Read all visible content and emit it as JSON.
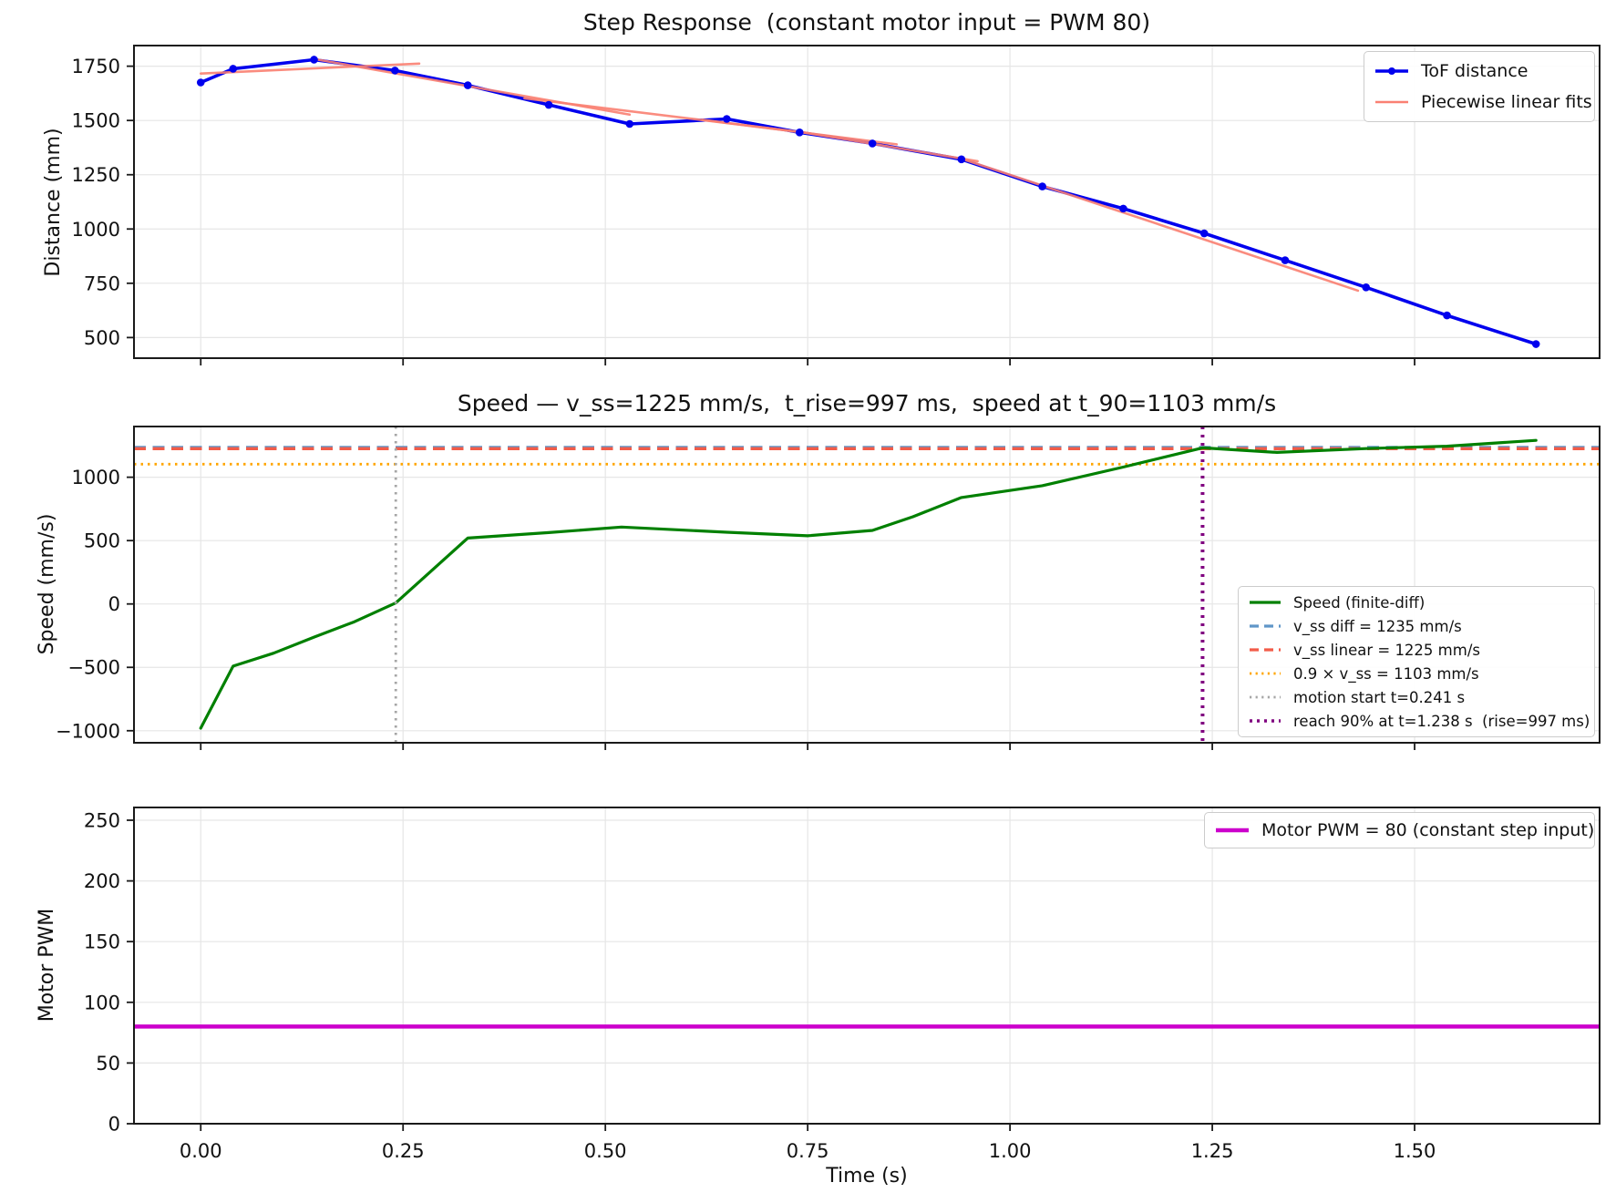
{
  "xlabel": "Time (s)",
  "colors": {
    "tof_blue": "#0000ee",
    "fit_salmon": "#fa8072",
    "speed_green": "#008000",
    "vss_diff_blue": "#6096c8",
    "vss_linear_red": "#f25c49",
    "vss90_orange": "#ffa500",
    "motion_gray": "#a6a6a6",
    "reach_purple": "#800080",
    "pwm_magenta": "#cc00cc",
    "grid": "#e6e6e6",
    "spine": "#1a1a1a"
  },
  "chart_data": [
    {
      "type": "line",
      "title": "Step Response  (constant motor input = PWM 80)",
      "ylabel": "Distance (mm)",
      "xlim": [
        -0.0825,
        1.7286
      ],
      "ylim": [
        405,
        1845
      ],
      "grid": true,
      "xticks": {
        "values": [
          0,
          0.25,
          0.5,
          0.75,
          1.0,
          1.25,
          1.5
        ],
        "labels": null
      },
      "yticks": {
        "values": [
          500,
          750,
          1000,
          1250,
          1500,
          1750
        ],
        "labels": [
          "500",
          "750",
          "1000",
          "1250",
          "1500",
          "1750"
        ]
      },
      "series": [
        {
          "name": "ToF distance",
          "color": "#0000ee",
          "width": 3.6,
          "marker": true,
          "points": [
            [
              0.0,
              1675
            ],
            [
              0.04,
              1738
            ],
            [
              0.14,
              1780
            ],
            [
              0.24,
              1730
            ],
            [
              0.33,
              1662
            ],
            [
              0.43,
              1572
            ],
            [
              0.53,
              1484
            ],
            [
              0.65,
              1507
            ],
            [
              0.74,
              1445
            ],
            [
              0.83,
              1394
            ],
            [
              0.94,
              1321
            ],
            [
              1.04,
              1196
            ],
            [
              1.14,
              1094
            ],
            [
              1.24,
              980
            ],
            [
              1.34,
              856
            ],
            [
              1.44,
              731
            ],
            [
              1.54,
              602
            ],
            [
              1.65,
              470
            ]
          ]
        }
      ],
      "fit": {
        "name": "Piecewise linear fits",
        "color": "#fa8072",
        "width": 2.6,
        "segments": [
          [
            [
              0.0,
              1716
            ],
            [
              0.27,
              1762
            ]
          ],
          [
            [
              0.14,
              1783
            ],
            [
              0.53,
              1527
            ]
          ],
          [
            [
              0.4,
              1602
            ],
            [
              0.74,
              1447
            ]
          ],
          [
            [
              0.62,
              1503
            ],
            [
              0.86,
              1390
            ]
          ],
          [
            [
              0.74,
              1448
            ],
            [
              0.96,
              1312
            ]
          ],
          [
            [
              0.94,
              1324
            ],
            [
              1.43,
              716
            ]
          ]
        ]
      },
      "legend": {
        "position": "upper right",
        "entries": [
          {
            "label": "ToF distance"
          },
          {
            "label": "Piecewise linear fits"
          }
        ]
      }
    },
    {
      "type": "line",
      "title": "Speed — v_ss=1225 mm/s,  t_rise=997 ms,  speed at t_90=1103 mm/s",
      "ylabel": "Speed (mm/s)",
      "xlim": [
        -0.0825,
        1.7286
      ],
      "ylim": [
        -1095,
        1400
      ],
      "grid": true,
      "xticks": {
        "values": [
          0,
          0.25,
          0.5,
          0.75,
          1.0,
          1.25,
          1.5
        ],
        "labels": null
      },
      "yticks": {
        "values": [
          -1000,
          -500,
          0,
          500,
          1000
        ],
        "labels": [
          "−1000",
          "−500",
          "0",
          "500",
          "1000"
        ]
      },
      "hlines": [
        {
          "y": 1235,
          "color": "#6096c8",
          "dash": "13 7.5",
          "width": 3.4,
          "label": "v_ss diff = 1235 mm/s"
        },
        {
          "y": 1225,
          "color": "#f25c49",
          "dash": "13 7.5",
          "width": 3.4,
          "label": "v_ss linear = 1225 mm/s"
        },
        {
          "y": 1103,
          "color": "#ffa500",
          "dash": "2.5 5",
          "width": 2.8,
          "label": "0.9 × v_ss = 1103 mm/s"
        }
      ],
      "vlines": [
        {
          "x": 0.241,
          "color": "#a6a6a6",
          "dash": "2.5 5.5",
          "width": 2.8,
          "label": "motion start t=0.241 s"
        },
        {
          "x": 1.238,
          "color": "#800080",
          "dash": "3 6",
          "width": 4.0,
          "label": "reach 90% at t=1.238 s  (rise=997 ms)"
        }
      ],
      "series": [
        {
          "name": "Speed (finite-diff)",
          "color": "#008000",
          "width": 3.2,
          "marker": false,
          "points": [
            [
              0.0,
              -980
            ],
            [
              0.04,
              -490
            ],
            [
              0.09,
              -388
            ],
            [
              0.14,
              -262
            ],
            [
              0.19,
              -140
            ],
            [
              0.241,
              8
            ],
            [
              0.33,
              520
            ],
            [
              0.43,
              563
            ],
            [
              0.52,
              607
            ],
            [
              0.65,
              566
            ],
            [
              0.75,
              538
            ],
            [
              0.83,
              580
            ],
            [
              0.88,
              688
            ],
            [
              0.94,
              840
            ],
            [
              1.04,
              933
            ],
            [
              1.14,
              1080
            ],
            [
              1.238,
              1232
            ],
            [
              1.33,
              1196
            ],
            [
              1.44,
              1226
            ],
            [
              1.54,
              1245
            ],
            [
              1.65,
              1291
            ]
          ]
        }
      ],
      "legend": {
        "position": "lower right",
        "entries": [
          {
            "label": "Speed (finite-diff)"
          },
          {
            "label": "v_ss diff = 1235 mm/s"
          },
          {
            "label": "v_ss linear = 1225 mm/s"
          },
          {
            "label": "0.9 × v_ss = 1103 mm/s"
          },
          {
            "label": "motion start t=0.241 s"
          },
          {
            "label": "reach 90% at t=1.238 s  (rise=997 ms)"
          }
        ]
      }
    },
    {
      "type": "line",
      "title": "",
      "ylabel": "Motor PWM",
      "xlabel": "Time (s)",
      "xlim": [
        -0.0825,
        1.7286
      ],
      "ylim": [
        0,
        260.5
      ],
      "grid": true,
      "xticks": {
        "values": [
          0,
          0.25,
          0.5,
          0.75,
          1.0,
          1.25,
          1.5
        ],
        "labels": [
          "0.00",
          "0.25",
          "0.50",
          "0.75",
          "1.00",
          "1.25",
          "1.50"
        ]
      },
      "yticks": {
        "values": [
          0,
          50,
          100,
          150,
          200,
          250
        ],
        "labels": [
          "0",
          "50",
          "100",
          "150",
          "200",
          "250"
        ]
      },
      "hlines": [
        {
          "y": 80,
          "color": "#cc00cc",
          "dash": null,
          "width": 4.5,
          "label": "Motor PWM = 80 (constant step input)"
        }
      ],
      "legend": {
        "position": "upper right",
        "entries": [
          {
            "label": "Motor PWM = 80 (constant step input)"
          }
        ]
      }
    }
  ]
}
